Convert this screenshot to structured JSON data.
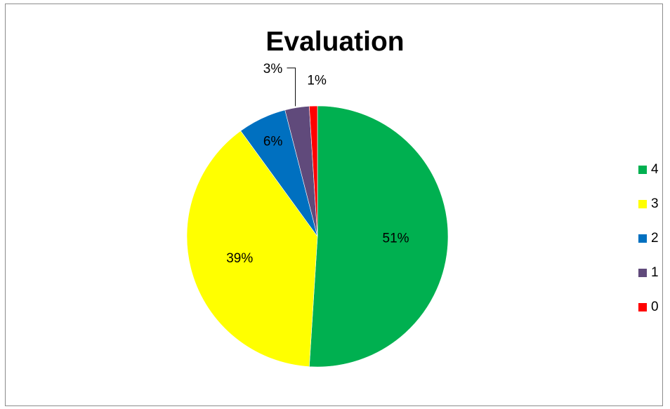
{
  "chart_data": {
    "type": "pie",
    "title": "Evaluation",
    "categories": [
      "4",
      "3",
      "2",
      "1",
      "0"
    ],
    "values": [
      51,
      39,
      6,
      3,
      1
    ],
    "labels": [
      "51%",
      "39%",
      "6%",
      "3%",
      "1%"
    ],
    "colors": [
      "#00b050",
      "#ffff00",
      "#0070c0",
      "#604a7b",
      "#ff0000"
    ],
    "legend_position": "right"
  }
}
